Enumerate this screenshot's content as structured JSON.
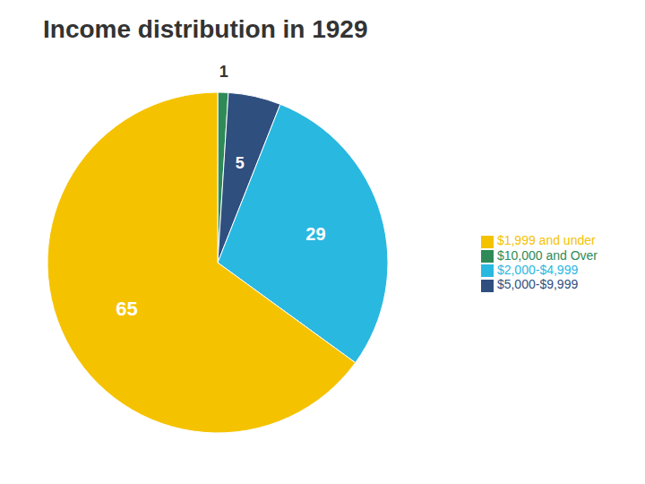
{
  "chart_data": {
    "type": "pie",
    "title": "Income distribution in 1929",
    "categories": [
      "$10,000 and Over",
      "$5,000-$9,999",
      "$2,000-$4,999",
      "$1,999 and under"
    ],
    "values": [
      1,
      5,
      29,
      65
    ],
    "colors": [
      "#2e8b57",
      "#2f4f7f",
      "#29b8e0",
      "#f5c200"
    ],
    "data_labels": true,
    "legend": "right"
  }
}
